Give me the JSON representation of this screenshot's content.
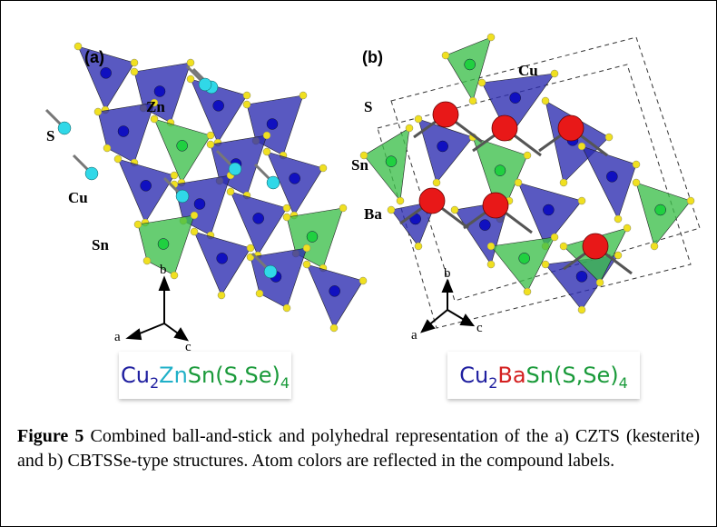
{
  "panels": [
    {
      "label": "(a)",
      "atoms": [
        "Zn",
        "S",
        "Cu",
        "Sn"
      ],
      "axes": [
        "b",
        "a",
        "c"
      ],
      "formula": [
        "Cu",
        "2",
        "Zn",
        "Sn(S,Se)",
        "4"
      ]
    },
    {
      "label": "(b)",
      "atoms": [
        "Cu",
        "S",
        "Sn",
        "Ba"
      ],
      "axes": [
        "b",
        "a",
        "c"
      ],
      "formula": [
        "Cu",
        "2",
        "Ba",
        "Sn(S,Se)",
        "4"
      ]
    }
  ],
  "caption": {
    "label": "Figure 5",
    "text": "Combined ball-and-stick and polyhedral representation of the a) CZTS (kesterite) and b) CBTSSe-type structures. Atom colors are reflected in the compound labels."
  }
}
